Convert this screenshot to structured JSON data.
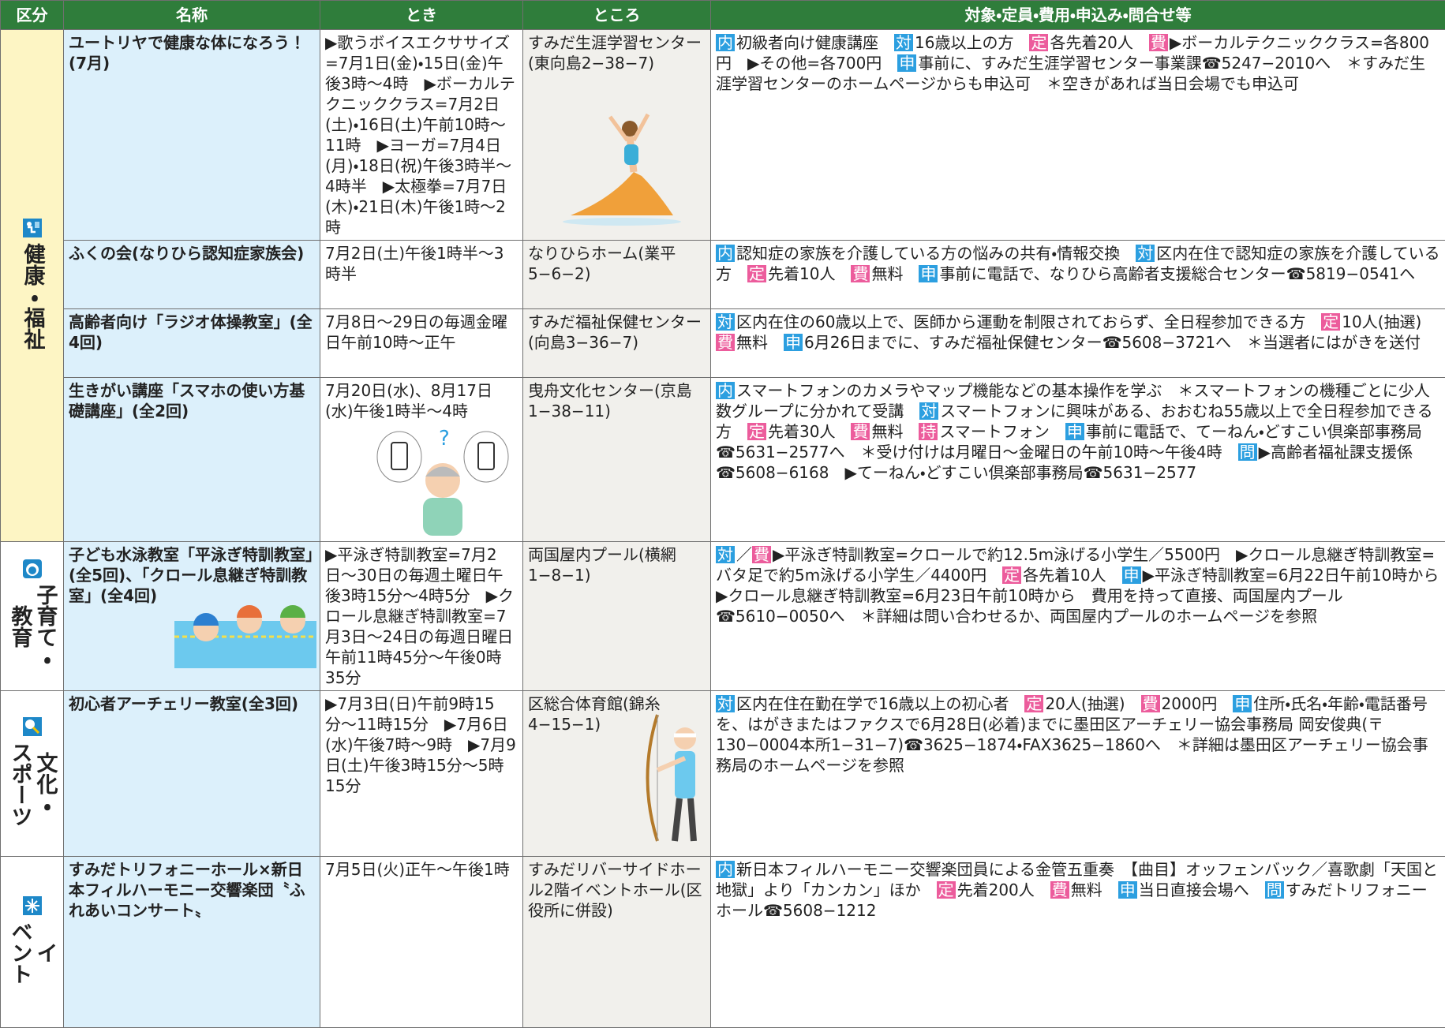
{
  "table": {
    "headers": [
      "区分",
      "名称",
      "とき",
      "ところ",
      "対象・定員・費用・申込み・問合せ等"
    ],
    "sections": [
      {
        "category": [
          "健康・福祉"
        ],
        "rows": [
          {
            "name": "ユートリヤで健康な体になろう！(7月)",
            "when": "▶歌うボイスエクササイズ=7月1日(金)・15日(金)午後3時〜4時　▶ボーカルテクニッククラス=7月2日(土)・16日(土)午前10時〜11時　▶ヨーガ=7月4日(月)・18日(祝)午後3時半〜4時半　▶太極拳=7月7日(木)・21日(木)午後1時〜2時",
            "where": "すみだ生涯学習センター(東向島2−38−7)",
            "details": [
              {
                "tag": "内",
                "text": "初級者向け健康講座　"
              },
              {
                "tag": "対",
                "text": "16歳以上の方　"
              },
              {
                "tag": "定",
                "text": "各先着20人　"
              },
              {
                "tag": "費",
                "text": "▶ボーカルテクニッククラス=各800円　▶その他=各700円　"
              },
              {
                "tag": "申",
                "text": "事前に、すみだ生涯学習センター事業課☎5247−2010へ　＊すみだ生涯学習センターのホームページからも申込可　＊空きがあれば当日会場でも申込可"
              }
            ]
          },
          {
            "name": "ふくの会(なりひら認知症家族会)",
            "when": "7月2日(土)午後1時半〜3時半",
            "where": "なりひらホーム(業平5−6−2)",
            "details": [
              {
                "tag": "内",
                "text": "認知症の家族を介護している方の悩みの共有・情報交換　"
              },
              {
                "tag": "対",
                "text": "区内在住で認知症の家族を介護している方　"
              },
              {
                "tag": "定",
                "text": "先着10人　"
              },
              {
                "tag": "費",
                "text": "無料　"
              },
              {
                "tag": "申",
                "text": "事前に電話で、なりひら高齢者支援総合センター☎5819−0541へ"
              }
            ]
          },
          {
            "name": "高齢者向け「ラジオ体操教室」(全4回)",
            "when": "7月8日〜29日の毎週金曜日午前10時〜正午",
            "where": "すみだ福祉保健センター(向島3−36−7)",
            "details": [
              {
                "tag": "対",
                "text": "区内在住の60歳以上で、医師から運動を制限されておらず、全日程参加できる方　"
              },
              {
                "tag": "定",
                "text": "10人(抽選)　"
              },
              {
                "tag": "費",
                "text": "無料　"
              },
              {
                "tag": "申",
                "text": "6月26日までに、すみだ福祉保健センター☎5608−3721へ　＊当選者にはがきを送付"
              }
            ]
          },
          {
            "name": "生きがい講座「スマホの使い方基礎講座」(全2回)",
            "when": "7月20日(水)、8月17日(水)午後1時半〜4時",
            "where": "曳舟文化センター(京島1−38−11)",
            "details": [
              {
                "tag": "内",
                "text": "スマートフォンのカメラやマップ機能などの基本操作を学ぶ　＊スマートフォンの機種ごとに少人数グループに分かれて受講　"
              },
              {
                "tag": "対",
                "text": "スマートフォンに興味がある、おおむね55歳以上で全日程参加できる方　"
              },
              {
                "tag": "定",
                "text": "先着30人　"
              },
              {
                "tag": "費",
                "text": "無料　"
              },
              {
                "tag": "持",
                "text": "スマートフォン　"
              },
              {
                "tag": "申",
                "text": "事前に電話で、てーねん・どすこい倶楽部事務局☎5631−2577へ　＊受け付けは月曜日〜金曜日の午前10時〜午後4時　"
              },
              {
                "tag": "問",
                "text": "▶高齢者福祉課支援係☎5608−6168　▶てーねん・どすこい倶楽部事務局☎5631−2577"
              }
            ]
          }
        ]
      },
      {
        "category": [
          "子育て・",
          "教育"
        ],
        "rows": [
          {
            "name": "子ども水泳教室「平泳ぎ特訓教室」(全5回)、「クロール息継ぎ特訓教室」(全4回)",
            "when": "▶平泳ぎ特訓教室=7月2日〜30日の毎週土曜日午後3時15分〜4時5分　▶クロール息継ぎ特訓教室=7月3日〜24日の毎週日曜日午前11時45分〜午後0時35分",
            "where": "両国屋内プール(横網1−8−1)",
            "details": [
              {
                "tag": "対",
                "text": "／"
              },
              {
                "tag": "費",
                "text": "▶平泳ぎ特訓教室=クロールで約12.5m泳げる小学生／5500円　▶クロール息継ぎ特訓教室=バタ足で約5m泳げる小学生／4400円　"
              },
              {
                "tag": "定",
                "text": "各先着10人　"
              },
              {
                "tag": "申",
                "text": "▶平泳ぎ特訓教室=6月22日午前10時から　▶クロール息継ぎ特訓教室=6月23日午前10時から　費用を持って直接、両国屋内プール☎5610−0050へ　＊詳細は問い合わせるか、両国屋内プールのホームページを参照"
              }
            ]
          }
        ]
      },
      {
        "category": [
          "文化・",
          "スポーツ"
        ],
        "rows": [
          {
            "name": "初心者アーチェリー教室(全3回)",
            "when": "▶7月3日(日)午前9時15分〜11時15分　▶7月6日(水)午後7時〜9時　▶7月9日(土)午後3時15分〜5時15分",
            "where": "区総合体育館(錦糸4−15−1)",
            "details": [
              {
                "tag": "対",
                "text": "区内在住在勤在学で16歳以上の初心者　"
              },
              {
                "tag": "定",
                "text": "20人(抽選)　"
              },
              {
                "tag": "費",
                "text": "2000円　"
              },
              {
                "tag": "申",
                "text": "住所・氏名・年齢・電話番号を、はがきまたはファクスで6月28日(必着)までに墨田区アーチェリー協会事務局 岡安俊典(〒130−0004本所1−31−7)☎3625−1874・FAX3625−1860へ　＊詳細は墨田区アーチェリー協会事務局のホームページを参照"
              }
            ]
          }
        ]
      },
      {
        "category": [
          "イ",
          "ベント"
        ],
        "rows": [
          {
            "name": "すみだトリフォニーホール×新日本フィルハーモニー交響楽団〝ふれあいコンサート〟",
            "when": "7月5日(火)正午〜午後1時",
            "where": "すみだリバーサイドホール2階イベントホール(区役所に併設)",
            "details": [
              {
                "tag": "内",
                "text": "新日本フィルハーモニー交響楽団員による金管五重奏　【曲目】オッフェンバック／喜歌劇「天国と地獄」より「カンカン」ほか　"
              },
              {
                "tag": "定",
                "text": "先着200人　"
              },
              {
                "tag": "費",
                "text": "無料　"
              },
              {
                "tag": "申",
                "text": "当日直接会場へ　"
              },
              {
                "tag": "問",
                "text": "すみだトリフォニーホール☎5608−1212"
              }
            ]
          }
        ]
      }
    ]
  }
}
